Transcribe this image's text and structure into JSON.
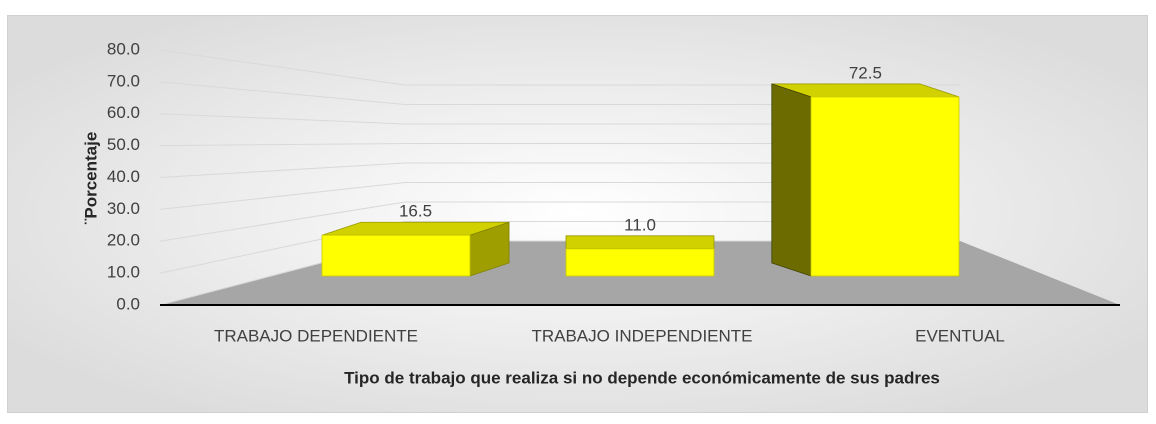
{
  "chart_data": {
    "type": "bar",
    "categories": [
      "TRABAJO DEPENDIENTE",
      "TRABAJO INDEPENDIENTE",
      "EVENTUAL"
    ],
    "values": [
      16.5,
      11.0,
      72.5
    ],
    "value_labels": [
      "16.5",
      "11.0",
      "72.5"
    ],
    "color": "#ffff00",
    "x_label": "Tipo de trabajo que realiza si no depende económicamente de sus padres",
    "y_label": "¨Porcentaje",
    "ylim": [
      0,
      80
    ],
    "yticks": [
      {
        "value": 0,
        "label": "0.0"
      },
      {
        "value": 10,
        "label": "10.0"
      },
      {
        "value": 20,
        "label": "20.0"
      },
      {
        "value": 30,
        "label": "30.0"
      },
      {
        "value": 40,
        "label": "40.0"
      },
      {
        "value": 50,
        "label": "50.0"
      },
      {
        "value": 60,
        "label": "60.0"
      },
      {
        "value": 70,
        "label": "70.0"
      },
      {
        "value": 80,
        "label": "80.0"
      }
    ],
    "grid": true
  }
}
